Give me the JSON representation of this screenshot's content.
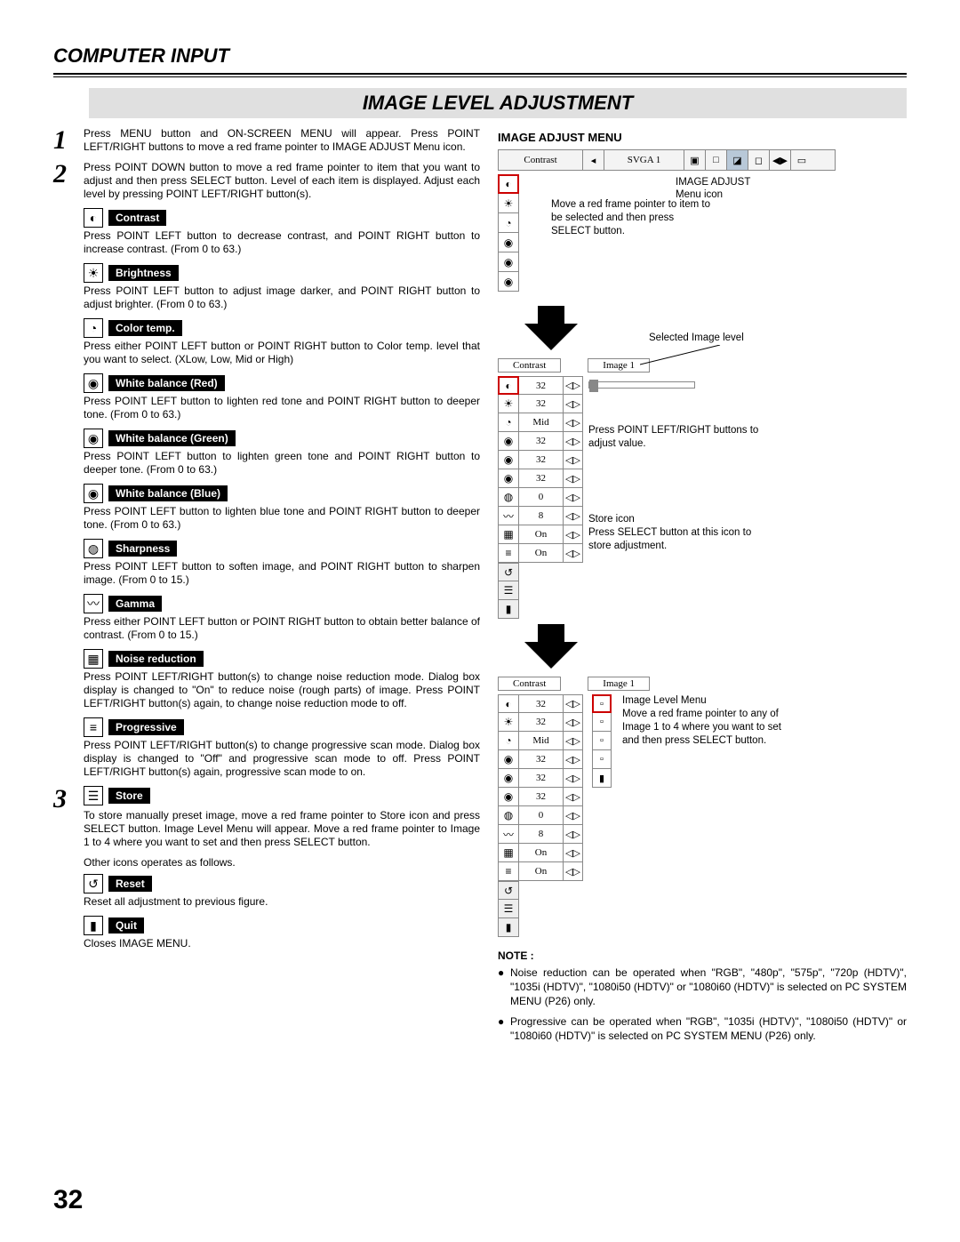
{
  "header": "COMPUTER INPUT",
  "section_title": "IMAGE LEVEL ADJUSTMENT",
  "page_number": "32",
  "steps": [
    {
      "num": "1",
      "text": "Press MENU button and ON-SCREEN MENU will appear.  Press POINT LEFT/RIGHT buttons to move a red frame pointer to IMAGE ADJUST Menu icon."
    },
    {
      "num": "2",
      "text": "Press POINT DOWN button to move a red frame pointer to item that you want to adjust and then press SELECT button. Level of each item is displayed. Adjust each level by pressing POINT LEFT/RIGHT button(s)."
    }
  ],
  "items": [
    {
      "icon": "◐",
      "name": "contrast-icon",
      "label": "Contrast",
      "desc": "Press POINT LEFT button to decrease contrast, and POINT RIGHT button to increase contrast.  (From 0 to 63.)"
    },
    {
      "icon": "☀",
      "name": "brightness-icon",
      "label": "Brightness",
      "desc": "Press POINT LEFT button to adjust image darker, and POINT RIGHT button to adjust brighter.  (From 0 to 63.)"
    },
    {
      "icon": "◔",
      "name": "color-temp-icon",
      "label": "Color temp.",
      "desc": "Press either POINT LEFT button or POINT RIGHT button to Color temp. level that you want to select. (XLow, Low, Mid or High)"
    },
    {
      "icon": "◉",
      "name": "wb-red-icon",
      "label": "White balance (Red)",
      "desc": "Press POINT LEFT button to lighten red tone and POINT RIGHT button to deeper tone.  (From 0 to 63.)"
    },
    {
      "icon": "◉",
      "name": "wb-green-icon",
      "label": "White balance (Green)",
      "desc": "Press POINT LEFT button to lighten green tone and POINT RIGHT button to deeper tone.  (From 0 to 63.)"
    },
    {
      "icon": "◉",
      "name": "wb-blue-icon",
      "label": "White balance (Blue)",
      "desc": "Press POINT LEFT button to lighten blue tone and POINT RIGHT button to deeper tone.  (From 0 to 63.)"
    },
    {
      "icon": "◍",
      "name": "sharpness-icon",
      "label": "Sharpness",
      "desc": "Press POINT LEFT button to soften image, and POINT RIGHT button to sharpen image.  (From 0 to 15.)"
    },
    {
      "icon": "〰",
      "name": "gamma-icon",
      "label": "Gamma",
      "desc": "Press either POINT LEFT button or POINT RIGHT button to obtain better balance of contrast.  (From 0 to 15.)"
    },
    {
      "icon": "▦",
      "name": "noise-icon",
      "label": "Noise reduction",
      "desc": "Press POINT LEFT/RIGHT button(s) to change noise reduction mode.  Dialog box display is changed to \"On\" to reduce noise (rough parts) of  image. Press POINT LEFT/RIGHT button(s) again, to change noise reduction mode to off."
    },
    {
      "icon": "≡",
      "name": "progressive-icon",
      "label": "Progressive",
      "desc": "Press POINT LEFT/RIGHT button(s) to change progressive scan mode. Dialog box display is changed to \"Off\" and progressive scan mode to off. Press POINT LEFT/RIGHT button(s) again, progressive scan mode to on."
    }
  ],
  "step3": {
    "num": "3",
    "store": {
      "icon": "☰",
      "label": "Store",
      "desc": "To store manually preset image, move a red frame pointer to Store icon and press SELECT button.  Image Level Menu will appear.  Move a red frame pointer to Image 1 to 4 where you want to set and then press SELECT button."
    },
    "sub_note": "Other icons operates as follows.",
    "reset": {
      "icon": "↺",
      "label": "Reset",
      "desc": "Reset all adjustment to previous figure."
    },
    "quit": {
      "icon": "▮",
      "label": "Quit",
      "desc": "Closes IMAGE MENU."
    }
  },
  "right": {
    "heading": "IMAGE ADJUST MENU",
    "menubar": {
      "contrast_label": "Contrast",
      "arrow": "◂",
      "svga": "SVGA 1",
      "icons": [
        "▣",
        "□",
        "◪",
        "◻",
        "◀▶",
        "▭"
      ]
    },
    "side_icons": [
      "◐",
      "☀",
      "◔",
      "◉",
      "◉",
      "◉"
    ],
    "annot1a": "IMAGE ADJUST",
    "annot1b": "Menu icon",
    "annot2": "Move a red frame pointer to item to be selected and then press SELECT button.",
    "panel1": {
      "header_left": "Contrast",
      "header_right": "Image 1",
      "selected_label": "Selected Image level",
      "rows": [
        {
          "icon": "◐",
          "val": "32"
        },
        {
          "icon": "☀",
          "val": "32"
        },
        {
          "icon": "◔",
          "val": "Mid"
        },
        {
          "icon": "◉",
          "val": "32"
        },
        {
          "icon": "◉",
          "val": "32"
        },
        {
          "icon": "◉",
          "val": "32"
        },
        {
          "icon": "◍",
          "val": "0"
        },
        {
          "icon": "〰",
          "val": "8"
        },
        {
          "icon": "▦",
          "val": "On"
        },
        {
          "icon": "≡",
          "val": "On"
        }
      ],
      "bottom_icons": [
        "↺",
        "☰",
        "▮"
      ],
      "annot_adjust": "Press POINT LEFT/RIGHT buttons to adjust value.",
      "annot_store1": "Store icon",
      "annot_store2": "Press SELECT button at this icon to store adjustment."
    },
    "panel2": {
      "header_left": "Contrast",
      "header_right": "Image 1",
      "rows": [
        {
          "icon": "◐",
          "val": "32"
        },
        {
          "icon": "☀",
          "val": "32"
        },
        {
          "icon": "◔",
          "val": "Mid"
        },
        {
          "icon": "◉",
          "val": "32"
        },
        {
          "icon": "◉",
          "val": "32"
        },
        {
          "icon": "◉",
          "val": "32"
        },
        {
          "icon": "◍",
          "val": "0"
        },
        {
          "icon": "〰",
          "val": "8"
        },
        {
          "icon": "▦",
          "val": "On"
        },
        {
          "icon": "≡",
          "val": "On"
        }
      ],
      "bottom_icons": [
        "↺",
        "☰",
        "▮"
      ],
      "level_icons": [
        "▫",
        "▫",
        "▫",
        "▫",
        "▮"
      ],
      "annot1": "Image Level Menu",
      "annot2": "Move a red frame pointer to any of Image 1 to 4 where you want to set  and then press SELECT button."
    },
    "note": {
      "title": "NOTE :",
      "bullets": [
        "Noise reduction can be operated when  \"RGB\", \"480p\", \"575p\", \"720p (HDTV)\", \"1035i (HDTV)\", \"1080i50 (HDTV)\" or \"1080i60 (HDTV)\" is selected on PC SYSTEM MENU (P26) only.",
        "Progressive can be operated when  \"RGB\", \"1035i (HDTV)\", \"1080i50 (HDTV)\" or \"1080i60 (HDTV)\" is selected on PC SYSTEM MENU (P26) only."
      ]
    }
  }
}
